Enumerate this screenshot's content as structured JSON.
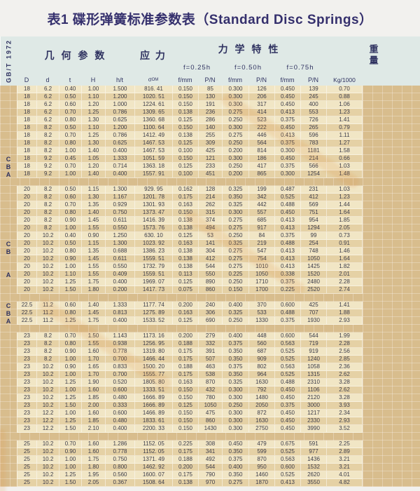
{
  "title": "表1 碟形弹簧标准参数表（Standard Disc Springs）",
  "standard": "GB/T 1972",
  "colors": {
    "title_text": "#35306d",
    "header_bg": "#dfe9e6",
    "header_text": "#2f3260",
    "row_light": "#f1e6c5",
    "row_dark": "#e5d1a5",
    "table_bg": "#d8bd8d",
    "body_text": "#3c3c4a",
    "watermark": "#e08c3c"
  },
  "header": {
    "geometry": "几 何 参 数",
    "stress": "应 力",
    "mechanical": "力 学 特 性",
    "weight": "重量",
    "f025": "f=0.25h",
    "f050": "f=0.50h",
    "f075": "f=0.75h",
    "col_D": "D",
    "col_d": "d",
    "col_t": "t",
    "col_H": "H",
    "col_ht": "h/t",
    "sigma_base": "σ",
    "sigma_sub": "OM",
    "col_fmm": "f/mm",
    "col_pn": "P/N",
    "col_kg": "Kg/1000"
  },
  "table": {
    "blocks": [
      {
        "rows": [
          [
            "",
            "18",
            "6.2",
            "0.40",
            "1.00",
            "1.500",
            "816. 41",
            "0.150",
            "85",
            "0.300",
            "126",
            "0.450",
            "139",
            "0.70"
          ],
          [
            "",
            "18",
            "6.2",
            "0.50",
            "1.10",
            "1.200",
            "1020. 51",
            "0.150",
            "130",
            "0.300",
            "206",
            "0.450",
            "245",
            "0.88"
          ],
          [
            "",
            "18",
            "6.2",
            "0.60",
            "1.20",
            "1.000",
            "1224. 61",
            "0.150",
            "191",
            "0.300",
            "317",
            "0.450",
            "400",
            "1.06"
          ],
          [
            "",
            "18",
            "6.2",
            "0.70",
            "1.25",
            "0.786",
            "1309. 65",
            "0.138",
            "236",
            "0.275",
            "414",
            "0.413",
            "553",
            "1.23"
          ],
          [
            "",
            "18",
            "6.2",
            "0.80",
            "1.30",
            "0.625",
            "1360. 68",
            "0.125",
            "286",
            "0.250",
            "523",
            "0.375",
            "726",
            "1.41"
          ],
          [
            "",
            "18",
            "8.2",
            "0.50",
            "1.10",
            "1.200",
            "1100. 64",
            "0.150",
            "140",
            "0.300",
            "222",
            "0.450",
            "265",
            "0.79"
          ],
          [
            "",
            "18",
            "8.2",
            "0.70",
            "1.25",
            "0.786",
            "1412. 49",
            "0.138",
            "255",
            "0.275",
            "446",
            "0.413",
            "596",
            "1.11"
          ],
          [
            "",
            "18",
            "8.2",
            "0.80",
            "1.30",
            "0.625",
            "1467. 53",
            "0.125",
            "309",
            "0.250",
            "564",
            "0.375",
            "783",
            "1.27"
          ],
          [
            "",
            "18",
            "8.2",
            "1.00",
            "1.40",
            "0.400",
            "1467. 53",
            "0.100",
            "425",
            "0.200",
            "814",
            "0.300",
            "1181",
            "1.58"
          ],
          [
            "C",
            "18",
            "9.2",
            "0.45",
            "1.05",
            "1.333",
            "1051. 59",
            "0.150",
            "121",
            "0.300",
            "186",
            "0.450",
            "214",
            "0.66"
          ],
          [
            "B",
            "18",
            "9.2",
            "0.70",
            "1.20",
            "0.714",
            "1363. 18",
            "0.125",
            "233",
            "0.250",
            "417",
            "0.375",
            "566",
            "1.03"
          ],
          [
            "A",
            "18",
            "9.2",
            "1.00",
            "1.40",
            "0.400",
            "1557. 91",
            "0.100",
            "451",
            "0.200",
            "865",
            "0.300",
            "1254",
            "1.48"
          ]
        ]
      },
      {
        "rows": [
          [
            "",
            "20",
            "8.2",
            "0.50",
            "1.15",
            "1.300",
            "929. 95",
            "0.162",
            "128",
            "0.325",
            "199",
            "0.487",
            "231",
            "1.03"
          ],
          [
            "",
            "20",
            "8.2",
            "0.60",
            "1.30",
            "1.167",
            "1201. 78",
            "0.175",
            "214",
            "0.350",
            "342",
            "0.525",
            "412",
            "1.23"
          ],
          [
            "",
            "20",
            "8.2",
            "0.70",
            "1.35",
            "0.929",
            "1301. 93",
            "0.163",
            "262",
            "0.325",
            "442",
            "0.488",
            "569",
            "1.44"
          ],
          [
            "",
            "20",
            "8.2",
            "0.80",
            "1.40",
            "0.750",
            "1373. 47",
            "0.150",
            "315",
            "0.300",
            "557",
            "0.450",
            "751",
            "1.64"
          ],
          [
            "",
            "20",
            "8.2",
            "0.90",
            "1.45",
            "0.611",
            "1416. 39",
            "0.138",
            "374",
            "0.275",
            "685",
            "0.413",
            "954",
            "1.85"
          ],
          [
            "",
            "20",
            "8.2",
            "1.00",
            "1.55",
            "0.550",
            "1573. 76",
            "0.138",
            "494",
            "0.275",
            "917",
            "0.413",
            "1294",
            "2.05"
          ],
          [
            "",
            "20",
            "10.2",
            "0.40",
            "0.90",
            "1.250",
            "630. 10",
            "0.125",
            "53",
            "0.250",
            "84",
            "0.375",
            "99",
            "0.73"
          ],
          [
            "C",
            "20",
            "10.2",
            "0.50",
            "1.15",
            "1.300",
            "1023. 92",
            "0.163",
            "141",
            "0.325",
            "219",
            "0.488",
            "254",
            "0.91"
          ],
          [
            "B",
            "20",
            "10.2",
            "0.80",
            "1.35",
            "0.688",
            "1386. 23",
            "0.138",
            "304",
            "0.275",
            "547",
            "0.413",
            "748",
            "1.46"
          ],
          [
            "",
            "20",
            "10.2",
            "0.90",
            "1.45",
            "0.611",
            "1559. 51",
            "0.138",
            "412",
            "0.275",
            "754",
            "0.413",
            "1050",
            "1.64"
          ],
          [
            "",
            "20",
            "10.2",
            "1.00",
            "1.55",
            "0.550",
            "1732. 79",
            "0.138",
            "544",
            "0.275",
            "1010",
            "0.413",
            "1425",
            "1.82"
          ],
          [
            "A",
            "20",
            "10.2",
            "1.10",
            "1.55",
            "0.409",
            "1559. 51",
            "0.113",
            "550",
            "0.225",
            "1050",
            "0.338",
            "1520",
            "2.01"
          ],
          [
            "",
            "20",
            "10.2",
            "1.25",
            "1.75",
            "0.400",
            "1969. 07",
            "0.125",
            "890",
            "0.250",
            "1710",
            "0.375",
            "2480",
            "2.28"
          ],
          [
            "",
            "20",
            "10.2",
            "1.50",
            "1.80",
            "0.200",
            "1417. 73",
            "0.075",
            "860",
            "0.150",
            "1700",
            "0.225",
            "2520",
            "2.74"
          ]
        ]
      },
      {
        "rows": [
          [
            "C",
            "22.5",
            "11.2",
            "0.60",
            "1.40",
            "1.333",
            "1177. 74",
            "0.200",
            "240",
            "0.400",
            "370",
            "0.600",
            "425",
            "1.41"
          ],
          [
            "B",
            "22.5",
            "11.2",
            "0.80",
            "1.45",
            "0.813",
            "1275. 89",
            "0.163",
            "306",
            "0.325",
            "533",
            "0.488",
            "707",
            "1.88"
          ],
          [
            "A",
            "22.5",
            "11.2",
            "1.25",
            "1.75",
            "0.400",
            "1533. 52",
            "0.125",
            "690",
            "0.250",
            "1330",
            "0.375",
            "1930",
            "2.93"
          ]
        ]
      },
      {
        "rows": [
          [
            "",
            "23",
            "8.2",
            "0.70",
            "1.50",
            "1.143",
            "1173. 16",
            "0.200",
            "279",
            "0.400",
            "448",
            "0.600",
            "544",
            "1.99"
          ],
          [
            "",
            "23",
            "8.2",
            "0.80",
            "1.55",
            "0.938",
            "1256. 95",
            "0.188",
            "332",
            "0.375",
            "560",
            "0.563",
            "719",
            "2.28"
          ],
          [
            "",
            "23",
            "8.2",
            "0.90",
            "1.60",
            "0.778",
            "1319. 80",
            "0.175",
            "391",
            "0.350",
            "687",
            "0.525",
            "919",
            "2.56"
          ],
          [
            "",
            "23",
            "8.2",
            "1.00",
            "1.70",
            "0.700",
            "1466. 44",
            "0.175",
            "507",
            "0.350",
            "909",
            "0.525",
            "1240",
            "2.85"
          ],
          [
            "",
            "23",
            "10.2",
            "0.90",
            "1.65",
            "0.833",
            "1500. 20",
            "0.188",
            "463",
            "0.375",
            "802",
            "0.563",
            "1058",
            "2.36"
          ],
          [
            "",
            "23",
            "10.2",
            "1.00",
            "1.70",
            "0.700",
            "1555. 77",
            "0.175",
            "538",
            "0.350",
            "964",
            "0.525",
            "1315",
            "2.62"
          ],
          [
            "",
            "23",
            "10.2",
            "1.25",
            "1.90",
            "0.520",
            "1805. 80",
            "0.163",
            "870",
            "0.325",
            "1630",
            "0.488",
            "2310",
            "3.28"
          ],
          [
            "",
            "23",
            "10.2",
            "1.00",
            "1.60",
            "0.600",
            "1333. 51",
            "0.150",
            "432",
            "0.300",
            "792",
            "0.450",
            "1106",
            "2.62"
          ],
          [
            "",
            "23",
            "10.2",
            "1.25",
            "1.85",
            "0.480",
            "1666. 89",
            "0.150",
            "780",
            "0.300",
            "1480",
            "0.450",
            "2120",
            "3.28"
          ],
          [
            "",
            "23",
            "10.2",
            "1.50",
            "2.00",
            "0.333",
            "1666. 89",
            "0.125",
            "1050",
            "0.250",
            "2050",
            "0.375",
            "3000",
            "3.93"
          ],
          [
            "",
            "23",
            "12.2",
            "1.00",
            "1.60",
            "0.600",
            "1466. 89",
            "0.150",
            "475",
            "0.300",
            "872",
            "0.450",
            "1217",
            "2.34"
          ],
          [
            "",
            "23",
            "12.2",
            "1.25",
            "1.85",
            "0.480",
            "1833. 61",
            "0.150",
            "860",
            "0.300",
            "1630",
            "0.450",
            "2330",
            "2.93"
          ],
          [
            "",
            "23",
            "12.2",
            "1.50",
            "2.10",
            "0.400",
            "2200. 33",
            "0.150",
            "1430",
            "0.300",
            "2750",
            "0.450",
            "3990",
            "3.52"
          ]
        ]
      },
      {
        "rows": [
          [
            "",
            "25",
            "10.2",
            "0.70",
            "1.60",
            "1.286",
            "1152. 05",
            "0.225",
            "308",
            "0.450",
            "479",
            "0.675",
            "591",
            "2.25"
          ],
          [
            "",
            "25",
            "10.2",
            "0.90",
            "1.60",
            "0.778",
            "1152. 05",
            "0.175",
            "341",
            "0.350",
            "599",
            "0.525",
            "977",
            "2.89"
          ],
          [
            "",
            "25",
            "10.2",
            "1.00",
            "1.75",
            "0.750",
            "1371. 49",
            "0.188",
            "492",
            "0.375",
            "870",
            "0.563",
            "1436",
            "3.21"
          ],
          [
            "",
            "25",
            "10.2",
            "1.00",
            "1.80",
            "0.800",
            "1462. 92",
            "0.200",
            "544",
            "0.400",
            "950",
            "0.600",
            "1532",
            "3.21"
          ],
          [
            "",
            "25",
            "10.2",
            "1.25",
            "1.95",
            "0.560",
            "1600. 07",
            "0.175",
            "790",
            "0.350",
            "1460",
            "0.525",
            "2620",
            "4.01"
          ],
          [
            "",
            "25",
            "10.2",
            "1.50",
            "2.05",
            "0.367",
            "1508. 64",
            "0.138",
            "970",
            "0.275",
            "1870",
            "0.413",
            "3550",
            "4.82"
          ]
        ]
      }
    ]
  }
}
